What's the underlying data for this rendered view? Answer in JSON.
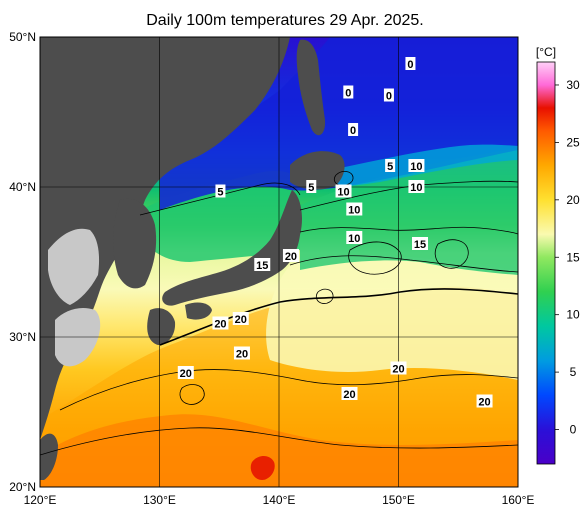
{
  "title": "Daily 100m temperatures 29 Apr. 2025.",
  "axes": {
    "lat_labels": [
      {
        "label": "50°N",
        "value": 50
      },
      {
        "label": "40°N",
        "value": 40
      },
      {
        "label": "30°N",
        "value": 30
      },
      {
        "label": "20°N",
        "value": 20
      }
    ],
    "lon_labels": [
      {
        "label": "120°E",
        "value": 120
      },
      {
        "label": "130°E",
        "value": 130
      },
      {
        "label": "140°E",
        "value": 140
      },
      {
        "label": "150°E",
        "value": 150
      },
      {
        "label": "160°E",
        "value": 160
      }
    ],
    "lat_range": [
      20,
      50
    ],
    "lon_range": [
      120,
      160
    ],
    "grid": true
  },
  "colorbar": {
    "unit": "[°C]",
    "range": [
      -3,
      32
    ],
    "ticks": [
      0,
      5,
      10,
      15,
      20,
      25,
      30
    ],
    "stops": [
      {
        "value": -3,
        "color": "#4a00c8"
      },
      {
        "value": 0,
        "color": "#2a10d8"
      },
      {
        "value": 3,
        "color": "#0048ff"
      },
      {
        "value": 6,
        "color": "#009ce0"
      },
      {
        "value": 9,
        "color": "#00c8a0"
      },
      {
        "value": 12,
        "color": "#30d050"
      },
      {
        "value": 15,
        "color": "#90e860"
      },
      {
        "value": 17,
        "color": "#fafab0"
      },
      {
        "value": 20,
        "color": "#ffe030"
      },
      {
        "value": 23,
        "color": "#ffa800"
      },
      {
        "value": 26,
        "color": "#ff5a00"
      },
      {
        "value": 28,
        "color": "#e81000"
      },
      {
        "value": 30,
        "color": "#ff6ad8"
      },
      {
        "value": 32,
        "color": "#ffd0f8"
      }
    ]
  },
  "contour_labels": [
    {
      "text": "0",
      "lon": 151.0,
      "lat": 48.2
    },
    {
      "text": "0",
      "lon": 145.8,
      "lat": 46.3
    },
    {
      "text": "0",
      "lon": 149.2,
      "lat": 46.1
    },
    {
      "text": "0",
      "lon": 146.2,
      "lat": 43.8
    },
    {
      "text": "5",
      "lon": 149.3,
      "lat": 41.4
    },
    {
      "text": "10",
      "lon": 151.5,
      "lat": 41.4
    },
    {
      "text": "10",
      "lon": 151.5,
      "lat": 40.0
    },
    {
      "text": "5",
      "lon": 142.7,
      "lat": 40.0
    },
    {
      "text": "10",
      "lon": 145.4,
      "lat": 39.7
    },
    {
      "text": "10",
      "lon": 146.3,
      "lat": 38.5
    },
    {
      "text": "10",
      "lon": 146.3,
      "lat": 36.6
    },
    {
      "text": "5",
      "lon": 135.1,
      "lat": 39.7
    },
    {
      "text": "15",
      "lon": 151.8,
      "lat": 36.2
    },
    {
      "text": "20",
      "lon": 141.0,
      "lat": 35.4
    },
    {
      "text": "15",
      "lon": 138.6,
      "lat": 34.8
    },
    {
      "text": "20",
      "lon": 135.1,
      "lat": 30.9
    },
    {
      "text": "20",
      "lon": 136.8,
      "lat": 31.2
    },
    {
      "text": "20",
      "lon": 136.9,
      "lat": 28.9
    },
    {
      "text": "20",
      "lon": 132.2,
      "lat": 27.6
    },
    {
      "text": "20",
      "lon": 150.0,
      "lat": 27.9
    },
    {
      "text": "20",
      "lon": 145.9,
      "lat": 26.2
    },
    {
      "text": "20",
      "lon": 157.2,
      "lat": 25.7
    }
  ],
  "legend_colors": {
    "land": "#4d4d4d",
    "shelf": "#c8c8c8",
    "grid": "#000000"
  }
}
